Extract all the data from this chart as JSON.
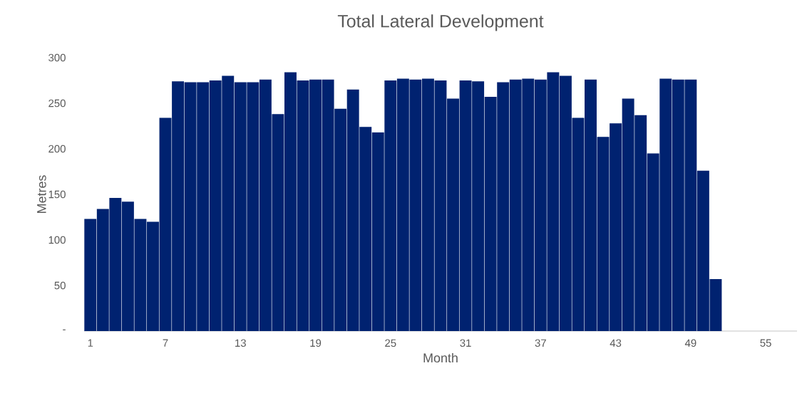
{
  "chart_data": {
    "type": "bar",
    "title": "Total Lateral Development",
    "xlabel": "Month",
    "ylabel": "Metres",
    "categories": [
      "1",
      null,
      null,
      null,
      null,
      null,
      "7",
      null,
      null,
      null,
      null,
      null,
      "13",
      null,
      null,
      null,
      null,
      null,
      "19",
      null,
      null,
      null,
      null,
      null,
      "25",
      null,
      null,
      null,
      null,
      null,
      "31",
      null,
      null,
      null,
      null,
      null,
      "37",
      null,
      null,
      null,
      null,
      null,
      "43",
      null,
      null,
      null,
      null,
      null,
      "49",
      null,
      null,
      null,
      null,
      null,
      "55",
      null,
      null
    ],
    "values": [
      123,
      134,
      146,
      142,
      123,
      120,
      234,
      274,
      273,
      273,
      275,
      280,
      273,
      273,
      276,
      238,
      284,
      275,
      276,
      276,
      244,
      265,
      224,
      218,
      275,
      277,
      276,
      277,
      275,
      255,
      275,
      274,
      257,
      273,
      276,
      277,
      276,
      284,
      280,
      234,
      276,
      213,
      228,
      255,
      237,
      195,
      277,
      276,
      276,
      176,
      57,
      null,
      null,
      null,
      null,
      null,
      null
    ],
    "color": "#002270",
    "ylim": [
      0,
      300
    ],
    "yticks": [
      {
        "value": 0,
        "label": "-"
      },
      50,
      100,
      150,
      200,
      250,
      300
    ]
  }
}
